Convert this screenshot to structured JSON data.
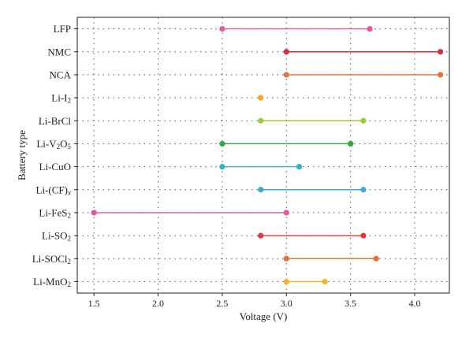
{
  "chart_data": {
    "type": "dumbbell",
    "xlabel": "Voltage (V)",
    "ylabel": "Battery type",
    "xlim": [
      1.37,
      4.27
    ],
    "xticks": [
      1.5,
      2.0,
      2.5,
      3.0,
      3.5,
      4.0
    ],
    "xtick_labels": [
      "1.5",
      "2.0",
      "2.5",
      "3.0",
      "3.5",
      "4.0"
    ],
    "grid": "dotted",
    "categories": [
      {
        "label": "LFP",
        "parts": [
          {
            "t": "LFP"
          }
        ],
        "min": 2.5,
        "max": 3.65,
        "color": "#e8579a"
      },
      {
        "label": "NMC",
        "parts": [
          {
            "t": "NMC"
          }
        ],
        "min": 3.0,
        "max": 4.2,
        "color": "#d92b3c"
      },
      {
        "label": "NCA",
        "parts": [
          {
            "t": "NCA"
          }
        ],
        "min": 3.0,
        "max": 4.2,
        "color": "#e8703a"
      },
      {
        "label": "Li-I2",
        "parts": [
          {
            "t": "Li-I"
          },
          {
            "t": "2",
            "sub": true
          }
        ],
        "min": 2.8,
        "max": 2.8,
        "color": "#f5a623"
      },
      {
        "label": "Li-BrCl",
        "parts": [
          {
            "t": "Li-BrCl"
          }
        ],
        "min": 2.8,
        "max": 3.6,
        "color": "#9cca3c"
      },
      {
        "label": "Li-V2O5",
        "parts": [
          {
            "t": "Li-V"
          },
          {
            "t": "2",
            "sub": true
          },
          {
            "t": "O"
          },
          {
            "t": "5",
            "sub": true
          }
        ],
        "min": 2.5,
        "max": 3.5,
        "color": "#2eaa3e"
      },
      {
        "label": "Li-CuO",
        "parts": [
          {
            "t": "Li-CuO"
          }
        ],
        "min": 2.5,
        "max": 3.1,
        "color": "#2bb3cf"
      },
      {
        "label": "Li-(CF)x",
        "parts": [
          {
            "t": "Li-(CF)"
          },
          {
            "t": "x",
            "sub": true,
            "italic": true
          }
        ],
        "min": 2.8,
        "max": 3.6,
        "color": "#3aa9dc"
      },
      {
        "label": "Li-FeS2",
        "parts": [
          {
            "t": "Li-FeS"
          },
          {
            "t": "2",
            "sub": true
          }
        ],
        "min": 1.5,
        "max": 3.0,
        "color": "#e8579a"
      },
      {
        "label": "Li-SO2",
        "parts": [
          {
            "t": "Li-SO"
          },
          {
            "t": "2",
            "sub": true
          }
        ],
        "min": 2.8,
        "max": 3.6,
        "color": "#e0383f"
      },
      {
        "label": "Li-SOCl2",
        "parts": [
          {
            "t": "Li-SOCl"
          },
          {
            "t": "2",
            "sub": true
          }
        ],
        "min": 3.0,
        "max": 3.7,
        "color": "#e8703a"
      },
      {
        "label": "Li-MnO2",
        "parts": [
          {
            "t": "Li-MnO"
          },
          {
            "t": "2",
            "sub": true
          }
        ],
        "min": 3.0,
        "max": 3.3,
        "color": "#f5b227"
      }
    ]
  }
}
